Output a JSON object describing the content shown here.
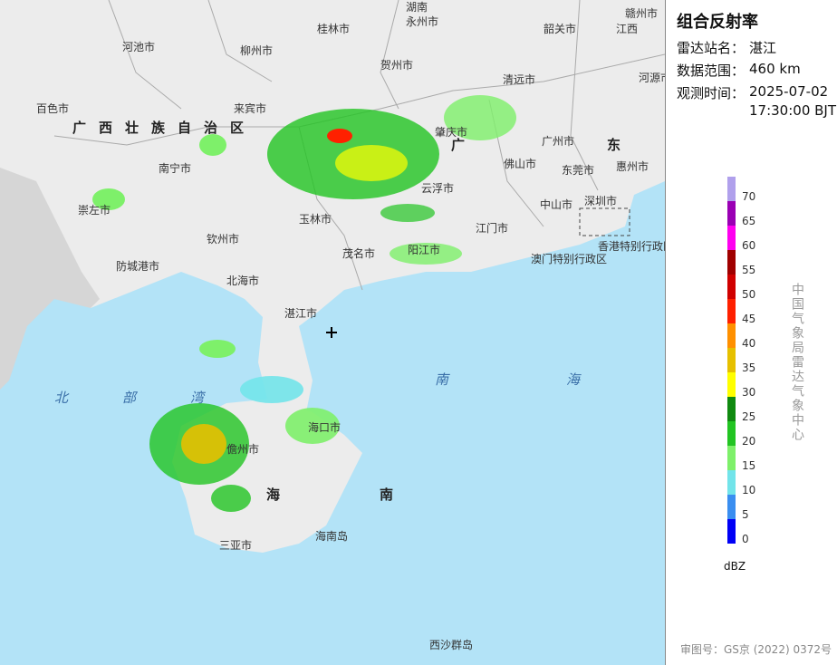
{
  "panel": {
    "title": "组合反射率",
    "station_label": "雷达站名：",
    "station": "湛江",
    "range_label": "数据范围：",
    "range": "460 km",
    "time_label": "观测时间：",
    "date": "2025-07-02",
    "time": "17:30:00 BJT"
  },
  "legend": {
    "unit": "dBZ",
    "ticks": [
      0,
      5,
      10,
      15,
      20,
      25,
      30,
      35,
      40,
      45,
      50,
      55,
      60,
      65,
      70
    ],
    "colors": [
      "#0000f6",
      "#3a8ef0",
      "#72e4ea",
      "#7ef06a",
      "#22c422",
      "#108a10",
      "#ffff00",
      "#e6c000",
      "#ff9000",
      "#ff2000",
      "#d00000",
      "#a00000",
      "#ff00f0",
      "#9a00b4",
      "#b0a0ec"
    ]
  },
  "agency": "中国气象局雷达气象中心",
  "credit": "审图号：GS京 (2022) 0372号",
  "labels": {
    "hunan": "湖南",
    "yongzhou": "永州市",
    "guilin": "桂林市",
    "hechi": "河池市",
    "liuzhou": "柳州市",
    "hezhou": "贺州市",
    "ganzhou": "赣州市",
    "jiangxi": "江西",
    "shaoguan": "韶关市",
    "heyuan": "河源市",
    "qingyuan": "清远市",
    "baise": "百色市",
    "laibin": "来宾市",
    "guangxi": "广西壮族自治区",
    "zhaoqing": "肇庆市",
    "guang": "广",
    "dong": "东",
    "foshan": "佛山市",
    "guangzhou": "广州市",
    "dongguan": "东莞市",
    "huizhou": "惠州市",
    "nanning": "南宁市",
    "yunfu": "云浮市",
    "chongzuo": "崇左市",
    "yulin": "玉林市",
    "jiangmen": "江门市",
    "zhongshan": "中山市",
    "shenzhen": "深圳市",
    "qinzhou": "钦州市",
    "maoming": "茂名市",
    "yangjiang": "阳江市",
    "hongkong": "香港特别行政区",
    "macao": "澳门特别行政区",
    "fangchenggang": "防城港市",
    "beihai": "北海市",
    "zhanjiang": "湛江市",
    "beibuwan": "北部湾",
    "nanhai": "南海",
    "haikou": "海口市",
    "danzhou": "儋州市",
    "hainan": "海南",
    "sanya": "三亚市",
    "hainandao": "海南岛",
    "xisha": "西沙群岛"
  }
}
